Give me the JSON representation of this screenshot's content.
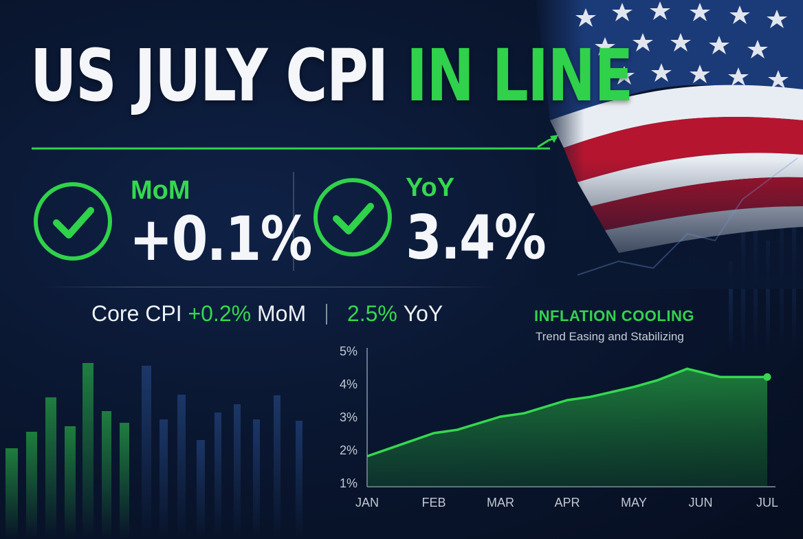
{
  "headline": {
    "part1": "US JULY CPI",
    "part2": "IN LINE"
  },
  "metrics": [
    {
      "label": "MoM",
      "value": "+0.1%"
    },
    {
      "label": "YoY",
      "value": "3.4%"
    }
  ],
  "core": {
    "label": "Core CPI",
    "mom_value": "+0.2%",
    "mom_label": "MoM",
    "yoy_value": "2.5%",
    "yoy_label": "YoY"
  },
  "chart_data": {
    "type": "area",
    "title": "INFLATION COOLING",
    "subtitle": "Trend Easing and Stabilizing",
    "categories": [
      "JAN",
      "FEB",
      "MAR",
      "APR",
      "MAY",
      "JUN",
      "JUL"
    ],
    "y_ticks": [
      "5%",
      "4%",
      "3%",
      "2%",
      "1%"
    ],
    "ylim": [
      1,
      5
    ],
    "points": [
      {
        "x": 0,
        "y": 1.8
      },
      {
        "x": 0.5,
        "y": 2.15
      },
      {
        "x": 1,
        "y": 2.5
      },
      {
        "x": 1.35,
        "y": 2.6
      },
      {
        "x": 2,
        "y": 3.0
      },
      {
        "x": 2.35,
        "y": 3.1
      },
      {
        "x": 3,
        "y": 3.5
      },
      {
        "x": 3.35,
        "y": 3.6
      },
      {
        "x": 4,
        "y": 3.9
      },
      {
        "x": 4.35,
        "y": 4.1
      },
      {
        "x": 4.8,
        "y": 4.45
      },
      {
        "x": 5.3,
        "y": 4.2
      },
      {
        "x": 6.0,
        "y": 4.2
      }
    ],
    "series_color": "#35d84f",
    "grid": false
  },
  "colors": {
    "accent_green": "#2fd24a",
    "background": "#0a1731",
    "flag_red": "#b5152f"
  },
  "icons": [
    "check-circle-icon",
    "trend-arrow-icon",
    "us-flag"
  ]
}
